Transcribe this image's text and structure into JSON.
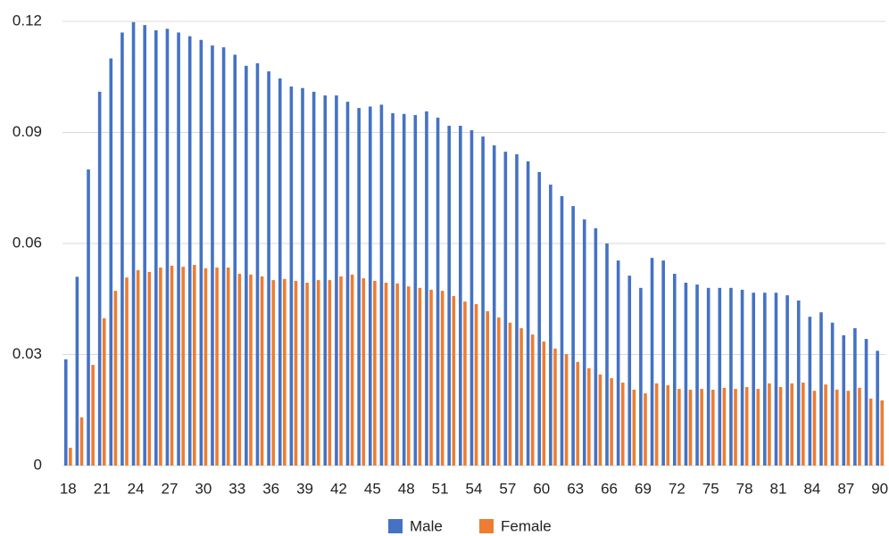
{
  "chart_data": {
    "type": "bar",
    "categories": [
      "18",
      null,
      null,
      "21",
      null,
      null,
      "24",
      null,
      null,
      "27",
      null,
      null,
      "30",
      null,
      null,
      "33",
      null,
      null,
      "36",
      null,
      null,
      "39",
      null,
      null,
      "42",
      null,
      null,
      "45",
      null,
      null,
      "48",
      null,
      null,
      "51",
      null,
      null,
      "54",
      null,
      null,
      "57",
      null,
      null,
      "60",
      null,
      null,
      "63",
      null,
      null,
      "66",
      null,
      null,
      "69",
      null,
      null,
      "72",
      null,
      null,
      "75",
      null,
      null,
      "78",
      null,
      null,
      "81",
      null,
      null,
      "84",
      null,
      null,
      "87",
      null,
      null,
      "90"
    ],
    "series": [
      {
        "name": "Male",
        "color": "#4472c4",
        "values": [
          0.0287,
          0.051,
          0.08,
          0.101,
          0.11,
          0.117,
          0.1198,
          0.119,
          0.1176,
          0.118,
          0.117,
          0.116,
          0.115,
          0.1135,
          0.113,
          0.111,
          0.108,
          0.1087,
          0.1065,
          0.1046,
          0.1024,
          0.102,
          0.101,
          0.1,
          0.1,
          0.0983,
          0.0966,
          0.097,
          0.0975,
          0.0952,
          0.095,
          0.0947,
          0.0957,
          0.094,
          0.0918,
          0.0918,
          0.0906,
          0.0889,
          0.0865,
          0.0848,
          0.0841,
          0.0822,
          0.0793,
          0.0759,
          0.0728,
          0.0701,
          0.0665,
          0.0641,
          0.06,
          0.0554,
          0.0513,
          0.048,
          0.0561,
          0.0554,
          0.0518,
          0.0494,
          0.0489,
          0.048,
          0.048,
          0.048,
          0.0475,
          0.0467,
          0.0467,
          0.0467,
          0.046,
          0.0446,
          0.0402,
          0.0414,
          0.0386,
          0.0352,
          0.0371,
          0.0342,
          0.031
        ]
      },
      {
        "name": "Female",
        "color": "#ed7d31",
        "values": [
          0.0048,
          0.013,
          0.0272,
          0.0398,
          0.0472,
          0.0508,
          0.0528,
          0.0523,
          0.0535,
          0.054,
          0.0537,
          0.0542,
          0.0533,
          0.0535,
          0.0535,
          0.0518,
          0.0516,
          0.0511,
          0.0501,
          0.0504,
          0.0499,
          0.0494,
          0.0501,
          0.0501,
          0.0511,
          0.0516,
          0.0506,
          0.0499,
          0.0494,
          0.0492,
          0.0484,
          0.048,
          0.0475,
          0.0472,
          0.0458,
          0.0443,
          0.0436,
          0.0417,
          0.04,
          0.0386,
          0.0371,
          0.0354,
          0.0335,
          0.0316,
          0.0301,
          0.028,
          0.0263,
          0.0246,
          0.0236,
          0.0224,
          0.0205,
          0.0195,
          0.0222,
          0.0217,
          0.0207,
          0.0205,
          0.0207,
          0.0205,
          0.021,
          0.0207,
          0.0212,
          0.0207,
          0.0222,
          0.0212,
          0.0222,
          0.0224,
          0.0202,
          0.0219,
          0.0205,
          0.0202,
          0.021,
          0.0181,
          0.0176
        ]
      }
    ],
    "ylim": [
      0,
      0.12
    ],
    "yticks": [
      0,
      0.03,
      0.06,
      0.09,
      0.12
    ],
    "grid": true,
    "legend": "bottom"
  }
}
